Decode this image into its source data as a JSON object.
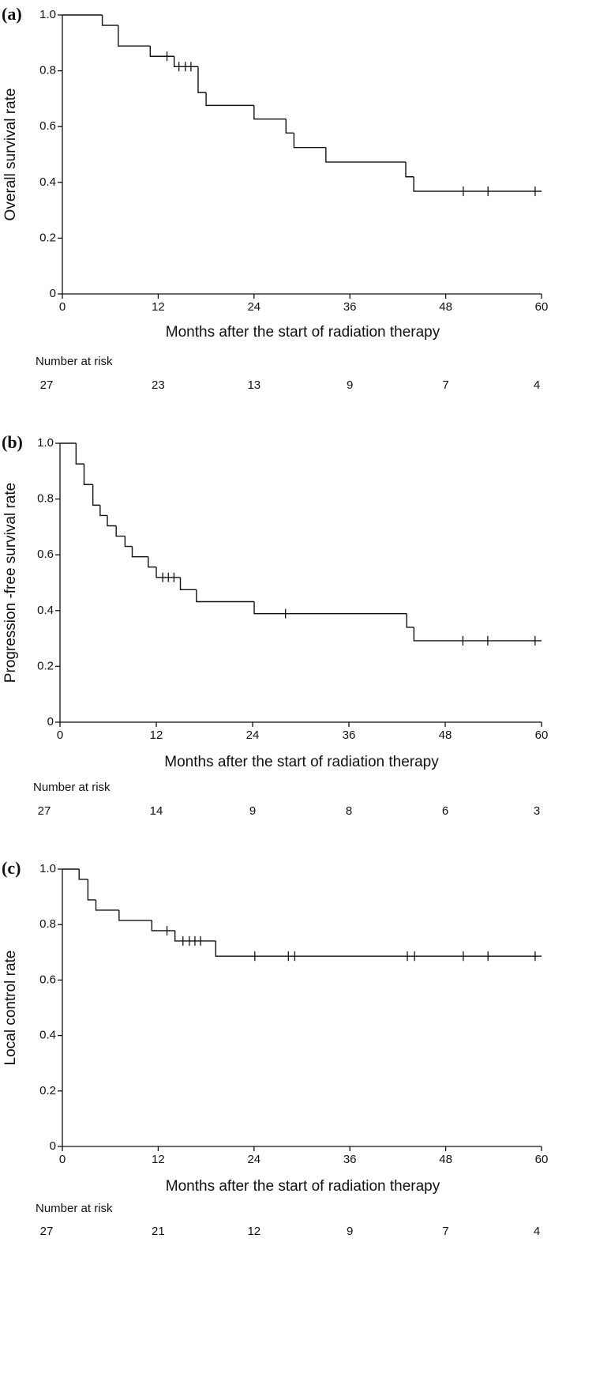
{
  "chart_data": [
    {
      "type": "step",
      "panel_label": "(a)",
      "ylabel": "Overall survival rate",
      "xlabel": "Months after the start of radiation therapy",
      "x": [
        0,
        5,
        7,
        11,
        14,
        17,
        18,
        24,
        28,
        29,
        33,
        43,
        44,
        60
      ],
      "values": [
        1,
        0.963,
        0.889,
        0.852,
        0.815,
        0.722,
        0.676,
        0.627,
        0.577,
        0.525,
        0.473,
        0.42,
        0.368,
        0.368
      ],
      "censored": {
        "x": [
          13.1,
          14.6,
          15.4,
          16.1,
          50.2,
          53.3,
          59.2
        ],
        "values": [
          0.852,
          0.815,
          0.815,
          0.815,
          0.368,
          0.368,
          0.368
        ]
      },
      "color": "#111111",
      "xlim": [
        0,
        60
      ],
      "xticks": [
        0,
        12,
        24,
        36,
        48,
        60
      ],
      "ylim": [
        0,
        1
      ],
      "yticks": [
        0,
        0.2,
        0.4,
        0.6,
        0.8,
        {
          "value": 1,
          "label": "1.0"
        }
      ],
      "risk": {
        "title": "Number at risk",
        "values": [
          27,
          23,
          13,
          9,
          7,
          4
        ]
      }
    },
    {
      "type": "step",
      "panel_label": "(b)",
      "ylabel": "Progression -free survival rate",
      "xlabel": "Months after the start of radiation therapy",
      "x": [
        0,
        2,
        3,
        4.1,
        5,
        5.9,
        7,
        8.1,
        9,
        11,
        12,
        15,
        17,
        24.2,
        43.2,
        44.1,
        60
      ],
      "values": [
        1,
        0.926,
        0.852,
        0.778,
        0.741,
        0.704,
        0.667,
        0.63,
        0.593,
        0.556,
        0.519,
        0.475,
        0.432,
        0.389,
        0.34,
        0.292,
        0.292
      ],
      "censored": {
        "x": [
          12.8,
          13.5,
          14.2,
          28.1,
          50.2,
          53.3,
          59.2
        ],
        "values": [
          0.519,
          0.519,
          0.519,
          0.389,
          0.292,
          0.292,
          0.292
        ]
      },
      "color": "#111111",
      "xlim": [
        0,
        60
      ],
      "xticks": [
        0,
        12,
        24,
        36,
        48,
        60
      ],
      "ylim": [
        0,
        1
      ],
      "yticks": [
        0,
        0.2,
        0.4,
        0.6,
        0.8,
        {
          "value": 1,
          "label": "1.0"
        }
      ],
      "risk": {
        "title": "Number at risk",
        "values": [
          27,
          14,
          9,
          8,
          6,
          3
        ]
      }
    },
    {
      "type": "step",
      "panel_label": "(c)",
      "ylabel": "Local control rate",
      "xlabel": "Months after the start of radiation therapy",
      "x": [
        0,
        2.1,
        3.2,
        4.2,
        7.1,
        11.2,
        14.1,
        19.2,
        60
      ],
      "values": [
        1,
        0.963,
        0.889,
        0.852,
        0.815,
        0.778,
        0.741,
        0.686,
        0.686
      ],
      "censored": {
        "x": [
          13.1,
          15.1,
          15.9,
          16.6,
          17.3,
          24.1,
          28.3,
          29.1,
          43.2,
          44.1,
          50.2,
          53.3,
          59.2
        ],
        "values": [
          0.778,
          0.741,
          0.741,
          0.741,
          0.741,
          0.686,
          0.686,
          0.686,
          0.686,
          0.686,
          0.686,
          0.686,
          0.686
        ]
      },
      "color": "#111111",
      "xlim": [
        0,
        60
      ],
      "xticks": [
        0,
        12,
        24,
        36,
        48,
        60
      ],
      "ylim": [
        0,
        1
      ],
      "yticks": [
        0,
        0.2,
        0.4,
        0.6,
        0.8,
        {
          "value": 1,
          "label": "1.0"
        }
      ],
      "risk": {
        "title": "Number at risk",
        "values": [
          27,
          21,
          12,
          9,
          7,
          4
        ]
      }
    }
  ]
}
